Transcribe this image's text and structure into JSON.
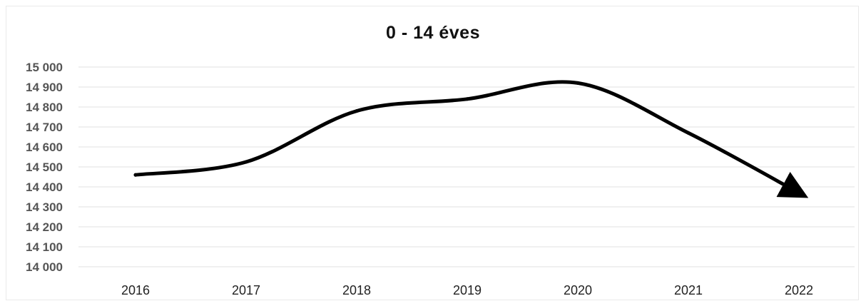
{
  "chart_data": {
    "type": "line",
    "title": "0 - 14 éves",
    "xlabel": "",
    "ylabel": "",
    "categories": [
      "2016",
      "2017",
      "2018",
      "2019",
      "2020",
      "2021",
      "2022"
    ],
    "series": [
      {
        "values": [
          14460,
          14525,
          14780,
          14840,
          14920,
          14670,
          14370
        ]
      }
    ],
    "ylim": [
      14000,
      15000
    ],
    "yticks": [
      14000,
      14100,
      14200,
      14300,
      14400,
      14500,
      14600,
      14700,
      14800,
      14900,
      15000
    ],
    "ytick_labels": [
      "14 000",
      "14 100",
      "14 200",
      "14 300",
      "14 400",
      "14 500",
      "14 600",
      "14 700",
      "14 800",
      "14 900",
      "15 000"
    ],
    "grid": true,
    "smooth": true,
    "end_marker": "arrow",
    "line_color": "#000000",
    "legend": "none"
  }
}
